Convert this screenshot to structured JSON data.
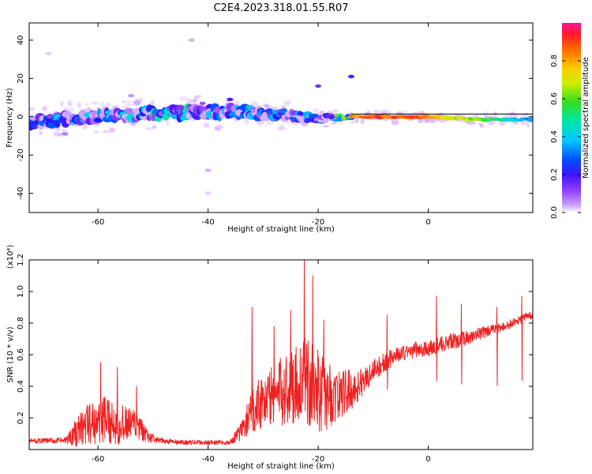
{
  "title": "C2E4.2023.318.01.55.R07",
  "colors": {
    "snr_line": "#ee2222",
    "spectro_bg": "#ffffff",
    "colormap": [
      "#ffffff",
      "#d9b3ff",
      "#9a4dff",
      "#5a1aff",
      "#1a1aff",
      "#0066ff",
      "#00ccff",
      "#00e6b0",
      "#33dd33",
      "#ccee00",
      "#ffdd00",
      "#ff8800",
      "#ff2222",
      "#ff1493"
    ]
  },
  "chart_data": [
    {
      "type": "heatmap",
      "name": "spectrogram",
      "xlabel": "Height of straight line (km)",
      "ylabel": "Frequency (Hz)",
      "xlim": [
        -72.5,
        19
      ],
      "ylim": [
        -50,
        49
      ],
      "xticks": [
        -60,
        -40,
        -20,
        0
      ],
      "yticks": [
        -40,
        -20,
        0,
        20,
        40
      ],
      "xtick_labels": [
        "-60",
        "-40",
        "-20",
        "0"
      ],
      "ytick_labels": [
        "-40",
        "-20",
        "0",
        "20",
        "40"
      ],
      "colorbar": {
        "label": "Normalized spectral amplitude",
        "range": [
          0,
          1
        ],
        "ticks": [
          0.0,
          0.2,
          0.4,
          0.6,
          0.8
        ],
        "tick_labels": [
          "0.0",
          "0.2",
          "0.4",
          "0.6",
          "0.8"
        ]
      },
      "band": {
        "center_hz_profile": [
          [
            -72,
            -3
          ],
          [
            -65,
            -1
          ],
          [
            -55,
            1.5
          ],
          [
            -45,
            2
          ],
          [
            -35,
            2.5
          ],
          [
            -25,
            0.5
          ],
          [
            -20,
            -1
          ],
          [
            -14,
            0
          ],
          [
            0,
            0
          ],
          [
            10,
            -1.5
          ],
          [
            19,
            -1.5
          ]
        ],
        "width_hz_profile": [
          [
            -72,
            5
          ],
          [
            -40,
            6
          ],
          [
            -22,
            4
          ],
          [
            -14,
            2
          ],
          [
            19,
            2
          ]
        ],
        "amplitude_profile": [
          [
            -72,
            0.45
          ],
          [
            -55,
            0.55
          ],
          [
            -45,
            0.6
          ],
          [
            -30,
            0.45
          ],
          [
            -18,
            0.5
          ],
          [
            -14,
            0.9
          ],
          [
            -9,
            0.95
          ],
          [
            0,
            0.9
          ],
          [
            5,
            0.75
          ],
          [
            10,
            0.7
          ],
          [
            19,
            0.45
          ]
        ]
      },
      "isolated_features": [
        {
          "x": -36,
          "y": 9,
          "amp": 0.25
        },
        {
          "x": -41,
          "y": 7,
          "amp": 0.15
        },
        {
          "x": -20,
          "y": 16,
          "amp": 0.2
        },
        {
          "x": -14,
          "y": 21,
          "amp": 0.25
        },
        {
          "x": -43,
          "y": 40,
          "amp": 0.08
        },
        {
          "x": -40,
          "y": -28,
          "amp": 0.08
        },
        {
          "x": -40,
          "y": -40,
          "amp": 0.05
        },
        {
          "x": -69,
          "y": 33,
          "amp": 0.05
        },
        {
          "x": -66,
          "y": -9,
          "amp": 0.12
        },
        {
          "x": -54,
          "y": 11,
          "amp": 0.1
        }
      ]
    },
    {
      "type": "line",
      "name": "snr",
      "xlabel": "Height of straight line (km)",
      "ylabel": "SNR (10 * v/v)",
      "y_multiplier_label": "(x10⁴)",
      "xlim": [
        -72.5,
        19
      ],
      "ylim": [
        0,
        1.2
      ],
      "xticks": [
        -60,
        -40,
        -20,
        0
      ],
      "yticks": [
        0.2,
        0.4,
        0.6,
        0.8,
        1.0,
        1.2
      ],
      "xtick_labels": [
        "-60",
        "-40",
        "-20",
        "0"
      ],
      "ytick_labels": [
        "0.2",
        "0.4",
        "0.6",
        "0.8",
        "1.0",
        "1.2"
      ],
      "envelope": {
        "x": [
          -72.5,
          -66,
          -64,
          -62,
          -59,
          -56,
          -53,
          -51,
          -49,
          -45,
          -40,
          -36,
          -34,
          -31,
          -28,
          -25,
          -23,
          -21,
          -19,
          -17,
          -15,
          -13,
          -10,
          -6,
          -2,
          0,
          3,
          6,
          9,
          13,
          16,
          19
        ],
        "base": [
          0.05,
          0.05,
          0.08,
          0.12,
          0.14,
          0.12,
          0.12,
          0.07,
          0.05,
          0.04,
          0.04,
          0.04,
          0.1,
          0.25,
          0.28,
          0.32,
          0.36,
          0.32,
          0.28,
          0.28,
          0.32,
          0.36,
          0.48,
          0.58,
          0.62,
          0.62,
          0.66,
          0.68,
          0.72,
          0.76,
          0.8,
          0.85
        ],
        "amplitude": [
          0.03,
          0.04,
          0.18,
          0.25,
          0.3,
          0.25,
          0.2,
          0.08,
          0.04,
          0.03,
          0.03,
          0.03,
          0.12,
          0.35,
          0.4,
          0.5,
          0.55,
          0.55,
          0.5,
          0.35,
          0.3,
          0.2,
          0.15,
          0.1,
          0.1,
          0.1,
          0.1,
          0.1,
          0.08,
          0.06,
          0.06,
          0.05
        ]
      },
      "peaks": [
        {
          "x": -59.5,
          "y": 0.55
        },
        {
          "x": -56.5,
          "y": 0.52
        },
        {
          "x": -53,
          "y": 0.4
        },
        {
          "x": -32,
          "y": 0.9
        },
        {
          "x": -28,
          "y": 0.78
        },
        {
          "x": -25,
          "y": 0.88
        },
        {
          "x": -22.5,
          "y": 1.22
        },
        {
          "x": -21,
          "y": 1.1
        },
        {
          "x": -19,
          "y": 0.82
        },
        {
          "x": -7.5,
          "y": 0.85
        },
        {
          "x": 1.5,
          "y": 0.97
        },
        {
          "x": 6,
          "y": 0.92
        },
        {
          "x": 12.5,
          "y": 0.9
        },
        {
          "x": 17,
          "y": 0.97
        }
      ]
    }
  ]
}
